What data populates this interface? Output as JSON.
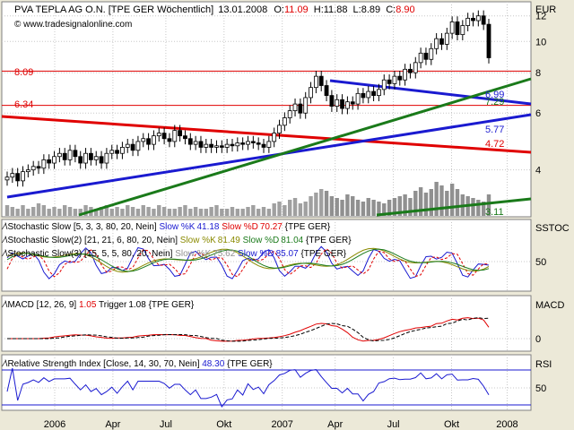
{
  "header": {
    "symbol": "PVA TEPLA AG O.N. [TPE GER",
    "period": "Wöchentlich]",
    "date": "13.01.2008",
    "o_label": "O:",
    "o": "11.09",
    "h_label": "H:",
    "h": "11.88",
    "l_label": "L:",
    "l": "8.89",
    "c_label": "C:",
    "c": "8.90",
    "watermark": "© www.tradesignalonline.com",
    "currency": "EUR"
  },
  "colors": {
    "red": "#e00000",
    "blue": "#1a1ad0",
    "green": "#1a7a1a",
    "olive": "#8a8a00",
    "grey": "#909090",
    "panel_bg": "#ffffff",
    "outer_bg": "#ece9d8"
  },
  "chart_data": [
    {
      "type": "candlestick",
      "panel": "price",
      "y_label": "EUR",
      "y_ticks": [
        4,
        6,
        8,
        10,
        12
      ],
      "ylim": [
        2.9,
        13.1
      ],
      "log_scale": true,
      "x_ticks": [
        "2006",
        "Apr",
        "Jul",
        "Okt",
        "2007",
        "Apr",
        "Jul",
        "Okt",
        "2008"
      ],
      "horizontal_lines": [
        {
          "label": "8.09",
          "value": 8.09,
          "color": "red"
        },
        {
          "label": "6.34",
          "value": 6.34,
          "color": "red"
        }
      ],
      "line_labels": [
        {
          "label": "6.99",
          "value": 6.99,
          "color": "blue"
        },
        {
          "label": "7.29",
          "value": 7.29,
          "color": "green"
        },
        {
          "label": "5.77",
          "value": 5.77,
          "color": "blue"
        },
        {
          "label": "4.72",
          "value": 4.72,
          "color": "red"
        },
        {
          "label": "3.11",
          "value": 3.11,
          "color": "green"
        }
      ],
      "weekly_close": [
        3.8,
        3.9,
        3.7,
        3.95,
        4.0,
        4.1,
        4.05,
        4.3,
        4.2,
        4.4,
        4.5,
        4.3,
        4.6,
        4.4,
        4.2,
        4.5,
        4.3,
        4.4,
        4.2,
        4.5,
        4.6,
        4.5,
        4.7,
        4.8,
        4.6,
        4.9,
        5.0,
        4.8,
        5.1,
        5.2,
        5.0,
        4.9,
        5.3,
        5.1,
        5.0,
        4.8,
        4.9,
        4.7,
        4.8,
        4.7,
        4.75,
        4.7,
        4.8,
        4.75,
        4.85,
        4.8,
        4.9,
        4.85,
        4.8,
        4.7,
        4.9,
        5.2,
        5.5,
        5.8,
        6.1,
        6.4,
        6.0,
        6.7,
        7.2,
        7.8,
        7.3,
        6.8,
        6.3,
        6.6,
        6.2,
        6.5,
        6.4,
        6.9,
        6.7,
        7.0,
        6.8,
        7.1,
        7.6,
        7.4,
        7.8,
        7.6,
        8.2,
        8.0,
        8.6,
        9.2,
        8.8,
        9.5,
        10.2,
        9.8,
        10.6,
        11.5,
        10.5,
        11.2,
        11.8,
        11.6,
        12.0,
        11.3,
        8.9
      ],
      "weekly_volume": [
        0.3,
        0.25,
        0.2,
        0.3,
        0.2,
        0.25,
        0.35,
        0.3,
        0.2,
        0.25,
        0.2,
        0.3,
        0.25,
        0.2,
        0.2,
        0.3,
        0.25,
        0.2,
        0.25,
        0.3,
        0.2,
        0.25,
        0.2,
        0.3,
        0.25,
        0.2,
        0.3,
        0.25,
        0.2,
        0.3,
        0.25,
        0.2,
        0.2,
        0.25,
        0.3,
        0.2,
        0.25,
        0.2,
        0.2,
        0.25,
        0.3,
        0.2,
        0.2,
        0.25,
        0.2,
        0.2,
        0.25,
        0.3,
        0.2,
        0.25,
        0.2,
        0.35,
        0.4,
        0.3,
        0.45,
        0.5,
        0.35,
        0.4,
        0.55,
        0.65,
        0.75,
        0.7,
        0.55,
        0.5,
        0.45,
        0.6,
        0.55,
        0.45,
        0.4,
        0.5,
        0.45,
        0.4,
        0.35,
        0.45,
        0.5,
        0.55,
        0.6,
        0.5,
        0.7,
        0.8,
        0.65,
        0.75,
        0.95,
        0.85,
        0.7,
        0.9,
        0.75,
        0.6,
        0.55,
        0.5,
        0.45,
        0.4,
        0.6
      ]
    },
    {
      "type": "line",
      "panel": "stochastic",
      "label": "SSTOC",
      "y_ticks": [
        50
      ],
      "legend": [
        {
          "name": "Stochastic Slow [5, 3, 3, 80, 20, Nein]",
          "k_label": "Slow %K",
          "k_value": "41.18",
          "d_label": "Slow %D",
          "d_value": "70.27",
          "suffix": "{TPE GER}"
        },
        {
          "name": "Stochastic Slow(2) [21, 21, 6, 80, 20, Nein]",
          "k_label": "Slow %K",
          "k_value": "81.49",
          "d_label": "Slow %D",
          "d_value": "81.04",
          "suffix": "{TPE GER}"
        },
        {
          "name": "Stochastic Slow(3) [15, 5, 5, 80, 20, Nein]",
          "k_label": "Slow %K",
          "k_value": "75.62",
          "d_label": "Slow %D",
          "d_value": "85.07",
          "suffix": "{TPE GER}"
        }
      ]
    },
    {
      "type": "line",
      "panel": "macd",
      "label": "MACD",
      "y_ticks": [
        0
      ],
      "legend": {
        "name": "MACD [12, 26, 9]",
        "value": "1.05",
        "trigger_label": "Trigger",
        "trigger_value": "1.08",
        "suffix": "{TPE GER}"
      }
    },
    {
      "type": "line",
      "panel": "rsi",
      "label": "RSI",
      "y_ticks": [
        50
      ],
      "legend": {
        "name": "Relative Strength Index [Close, 14, 30, 70, Nein]",
        "value": "48.30",
        "suffix": "{TPE GER}"
      }
    }
  ]
}
